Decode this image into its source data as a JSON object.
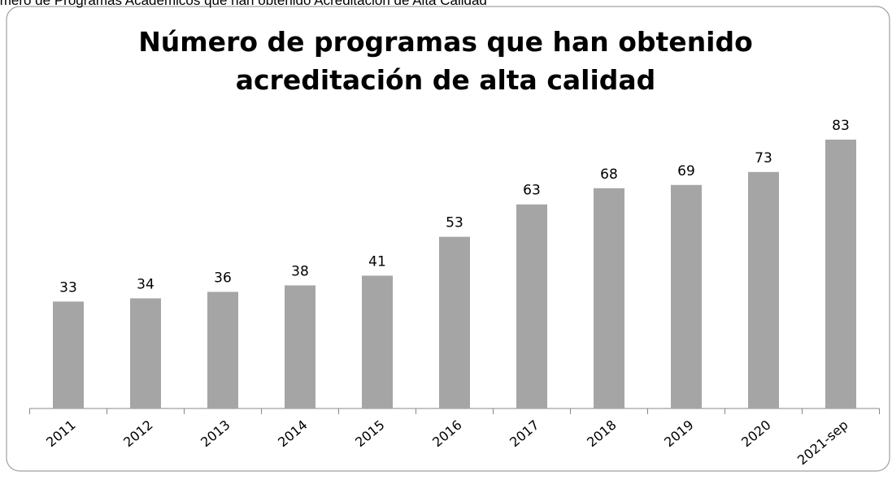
{
  "caption": "Número de Programas Académicos que han obtenido Acreditación de Alta Calidad",
  "chart_data": {
    "type": "bar",
    "title": "Número de programas que han obtenido acreditación de alta calidad",
    "categories": [
      "2011",
      "2012",
      "2013",
      "2014",
      "2015",
      "2016",
      "2017",
      "2018",
      "2019",
      "2020",
      "2021-sep"
    ],
    "values": [
      33,
      34,
      36,
      38,
      41,
      53,
      63,
      68,
      69,
      73,
      83
    ],
    "color": "#a5a5a5",
    "ylim": [
      0,
      90
    ]
  }
}
